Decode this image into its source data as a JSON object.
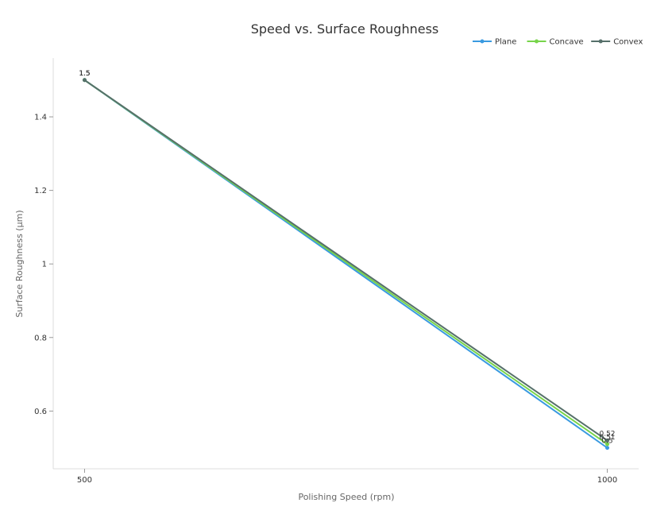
{
  "chart_data": {
    "type": "line",
    "title": "Speed vs. Surface Roughness",
    "xlabel": "Polishing Speed (rpm)",
    "ylabel": "Surface Roughness (μm)",
    "x": [
      500,
      1000
    ],
    "x_tick_labels": [
      "500",
      "1000"
    ],
    "xlim": [
      470,
      1030
    ],
    "ylim": [
      0.443,
      1.56
    ],
    "y_ticks": [
      0.6,
      0.8,
      1.0,
      1.2,
      1.4
    ],
    "y_tick_labels": [
      "0.6",
      "0.8",
      "1",
      "1.2",
      "1.4"
    ],
    "grid": false,
    "legend_position": "top-right",
    "series": [
      {
        "name": "Plane",
        "color": "#3a9ae0",
        "values": [
          1.5,
          0.5
        ],
        "labels": [
          "1.5",
          "0.5"
        ]
      },
      {
        "name": "Concave",
        "color": "#77d44a",
        "values": [
          1.5,
          0.51
        ],
        "labels": [
          "1.5",
          "0.51"
        ]
      },
      {
        "name": "Convex",
        "color": "#56706a",
        "values": [
          1.5,
          0.52
        ],
        "labels": [
          "1.5",
          "0.52"
        ]
      }
    ]
  }
}
